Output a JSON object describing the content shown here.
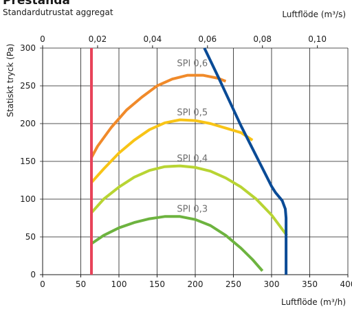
{
  "header": {
    "title": "Prestanda",
    "subtitle": "Standardutrustat aggregat"
  },
  "chart_data": {
    "type": "line",
    "ylabel": "Statiskt tryck (Pa)",
    "xlabel": "Luftflöde (m³/h)",
    "x2label": "Luftflöde (m³/s)",
    "xlim": [
      0,
      400
    ],
    "ylim": [
      0,
      300
    ],
    "x2lim": [
      0,
      0.1111
    ],
    "grid": true,
    "x_ticks": [
      0,
      50,
      100,
      150,
      200,
      250,
      300,
      350,
      400
    ],
    "x_tick_labels": [
      "0",
      "50",
      "100",
      "150",
      "200",
      "250",
      "300",
      "350",
      "400"
    ],
    "y_ticks": [
      0,
      50,
      100,
      150,
      200,
      250,
      300
    ],
    "y_tick_labels": [
      "0",
      "50",
      "100",
      "150",
      "200",
      "250",
      "300"
    ],
    "x2_ticks": [
      0,
      0.02,
      0.04,
      0.06,
      0.08,
      0.1
    ],
    "x2_tick_labels": [
      "0",
      "0,02",
      "0,04",
      "0,06",
      "0,08",
      "0,10"
    ],
    "series": [
      {
        "name": "SPI 0,6",
        "color": "#f08a2a",
        "label_x": 176,
        "label_y": 276,
        "x": [
          64,
          72,
          90,
          110,
          130,
          150,
          170,
          190,
          210,
          230,
          240
        ],
        "y": [
          155,
          170,
          195,
          218,
          235,
          250,
          259,
          264,
          264,
          260,
          256
        ]
      },
      {
        "name": "SPI 0,5",
        "color": "#f8c416",
        "label_x": 176,
        "label_y": 211,
        "x": [
          64,
          80,
          100,
          120,
          140,
          160,
          180,
          200,
          220,
          240,
          260,
          275
        ],
        "y": [
          122,
          140,
          161,
          178,
          192,
          201,
          205,
          204,
          200,
          194,
          188,
          178
        ]
      },
      {
        "name": "SPI 0,4",
        "color": "#b8d433",
        "label_x": 176,
        "label_y": 150,
        "x": [
          64,
          80,
          100,
          120,
          140,
          160,
          180,
          200,
          220,
          240,
          260,
          280,
          300,
          320
        ],
        "y": [
          82,
          100,
          116,
          129,
          138,
          143,
          144,
          142,
          137,
          128,
          116,
          100,
          79,
          52
        ]
      },
      {
        "name": "SPI 0,3",
        "color": "#6db33f",
        "label_x": 176,
        "label_y": 83,
        "x": [
          64,
          80,
          100,
          120,
          140,
          160,
          180,
          200,
          220,
          240,
          260,
          275,
          288
        ],
        "y": [
          41,
          52,
          62,
          69,
          74,
          77,
          77,
          73,
          65,
          52,
          35,
          20,
          5
        ]
      },
      {
        "name": "",
        "color": "#e8435a",
        "x": [
          64,
          64
        ],
        "y": [
          0,
          300
        ]
      },
      {
        "name": "",
        "color": "#0a4b96",
        "x": [
          212,
          230,
          260,
          290,
          300,
          305,
          314,
          318,
          319,
          319,
          319
        ],
        "y": [
          300,
          262,
          197,
          137,
          117,
          109,
          98,
          87,
          75,
          40,
          0
        ]
      }
    ]
  }
}
